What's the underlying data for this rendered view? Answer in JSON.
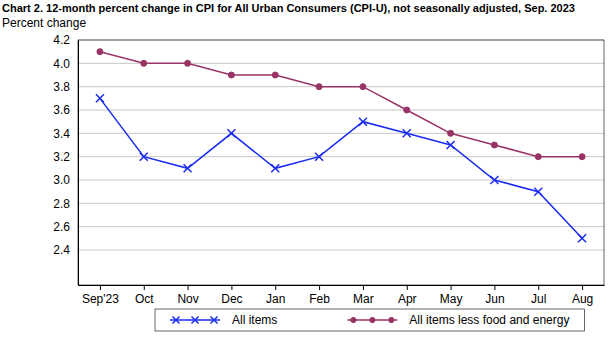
{
  "chart_data": {
    "type": "line",
    "title": "Chart 2. 12-month percent change in CPI for All Urban Consumers (CPI-U), not seasonally adjusted, Sep. 2023",
    "y_label": "Percent change",
    "categories": [
      "Sep'23",
      "Oct",
      "Nov",
      "Dec",
      "Jan",
      "Feb",
      "Mar",
      "Apr",
      "May",
      "Jun",
      "Jul",
      "Aug"
    ],
    "series": [
      {
        "name": "All items",
        "color": "#1a2cf0",
        "marker": "x",
        "line_style": "solid",
        "values": [
          3.7,
          3.2,
          3.1,
          3.4,
          3.1,
          3.2,
          3.5,
          3.4,
          3.3,
          3.0,
          2.9,
          2.5
        ]
      },
      {
        "name": "All items less food and energy",
        "color": "#993366",
        "marker": "circle",
        "line_style": "solid",
        "values": [
          4.1,
          4.0,
          4.0,
          3.9,
          3.9,
          3.8,
          3.8,
          3.6,
          3.4,
          3.3,
          3.2,
          3.2
        ]
      }
    ],
    "ylim": [
      2.1,
      4.2
    ],
    "yticks": [
      2.4,
      2.6,
      2.8,
      {
        "value": 3,
        "label": "3.0"
      },
      3.2,
      3.4,
      3.6,
      3.8,
      {
        "value": 4,
        "label": "4.0"
      },
      4.2
    ],
    "grid": true,
    "legend": "bottom"
  }
}
